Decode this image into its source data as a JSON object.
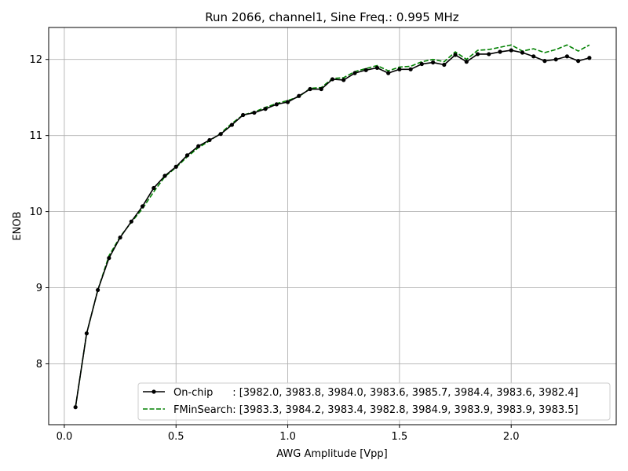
{
  "chart_data": {
    "type": "line",
    "title": "Run 2066, channel1, Sine Freq.: 0.995 MHz",
    "xlabel": "AWG Amplitude [Vpp]",
    "ylabel": "ENOB",
    "xlim": [
      -0.07,
      2.47
    ],
    "ylim": [
      7.2,
      12.42
    ],
    "xticks": [
      0.0,
      0.5,
      1.0,
      1.5,
      2.0
    ],
    "xtick_labels": [
      "0.0",
      "0.5",
      "1.0",
      "1.5",
      "2.0"
    ],
    "yticks": [
      8,
      9,
      10,
      11,
      12
    ],
    "ytick_labels": [
      "8",
      "9",
      "10",
      "11",
      "12"
    ],
    "grid": true,
    "legend_position": "lower-right",
    "x": [
      0.05,
      0.1,
      0.15,
      0.2,
      0.25,
      0.3,
      0.35,
      0.4,
      0.45,
      0.5,
      0.55,
      0.6,
      0.65,
      0.7,
      0.75,
      0.8,
      0.85,
      0.9,
      0.95,
      1.0,
      1.05,
      1.1,
      1.15,
      1.2,
      1.25,
      1.3,
      1.35,
      1.4,
      1.45,
      1.5,
      1.55,
      1.6,
      1.65,
      1.7,
      1.75,
      1.8,
      1.85,
      1.9,
      1.95,
      2.0,
      2.05,
      2.1,
      2.15,
      2.2,
      2.25,
      2.3,
      2.35
    ],
    "series": [
      {
        "name": "On-chip      : [3982.0, 3983.8, 3984.0, 3983.6, 3985.7, 3984.4, 3983.6, 3982.4]",
        "color": "#000000",
        "style": "solid",
        "marker": "circle",
        "values": [
          7.43,
          8.4,
          8.97,
          9.39,
          9.66,
          9.87,
          10.07,
          10.31,
          10.47,
          10.59,
          10.74,
          10.86,
          10.94,
          11.02,
          11.14,
          11.27,
          11.3,
          11.35,
          11.41,
          11.44,
          11.52,
          11.61,
          11.61,
          11.74,
          11.73,
          11.82,
          11.86,
          11.89,
          11.82,
          11.87,
          11.87,
          11.94,
          11.96,
          11.93,
          12.06,
          11.97,
          12.07,
          12.07,
          12.1,
          12.12,
          12.09,
          12.04,
          11.98,
          12.0,
          12.04,
          11.98,
          12.02
        ]
      },
      {
        "name": "FMinSearch: [3983.3, 3984.2, 3983.4, 3982.8, 3984.9, 3983.9, 3983.9, 3983.5]",
        "color": "#008000",
        "style": "dashed",
        "marker": "none",
        "values": [
          7.43,
          8.4,
          8.97,
          9.42,
          9.67,
          9.86,
          10.04,
          10.26,
          10.46,
          10.58,
          10.72,
          10.84,
          10.93,
          11.03,
          11.16,
          11.27,
          11.31,
          11.37,
          11.42,
          11.46,
          11.51,
          11.62,
          11.63,
          11.75,
          11.76,
          11.84,
          11.88,
          11.92,
          11.85,
          11.9,
          11.91,
          11.97,
          12.0,
          11.97,
          12.1,
          12.0,
          12.12,
          12.13,
          12.16,
          12.19,
          12.11,
          12.14,
          12.09,
          12.13,
          12.19,
          12.11,
          12.19
        ]
      }
    ]
  }
}
